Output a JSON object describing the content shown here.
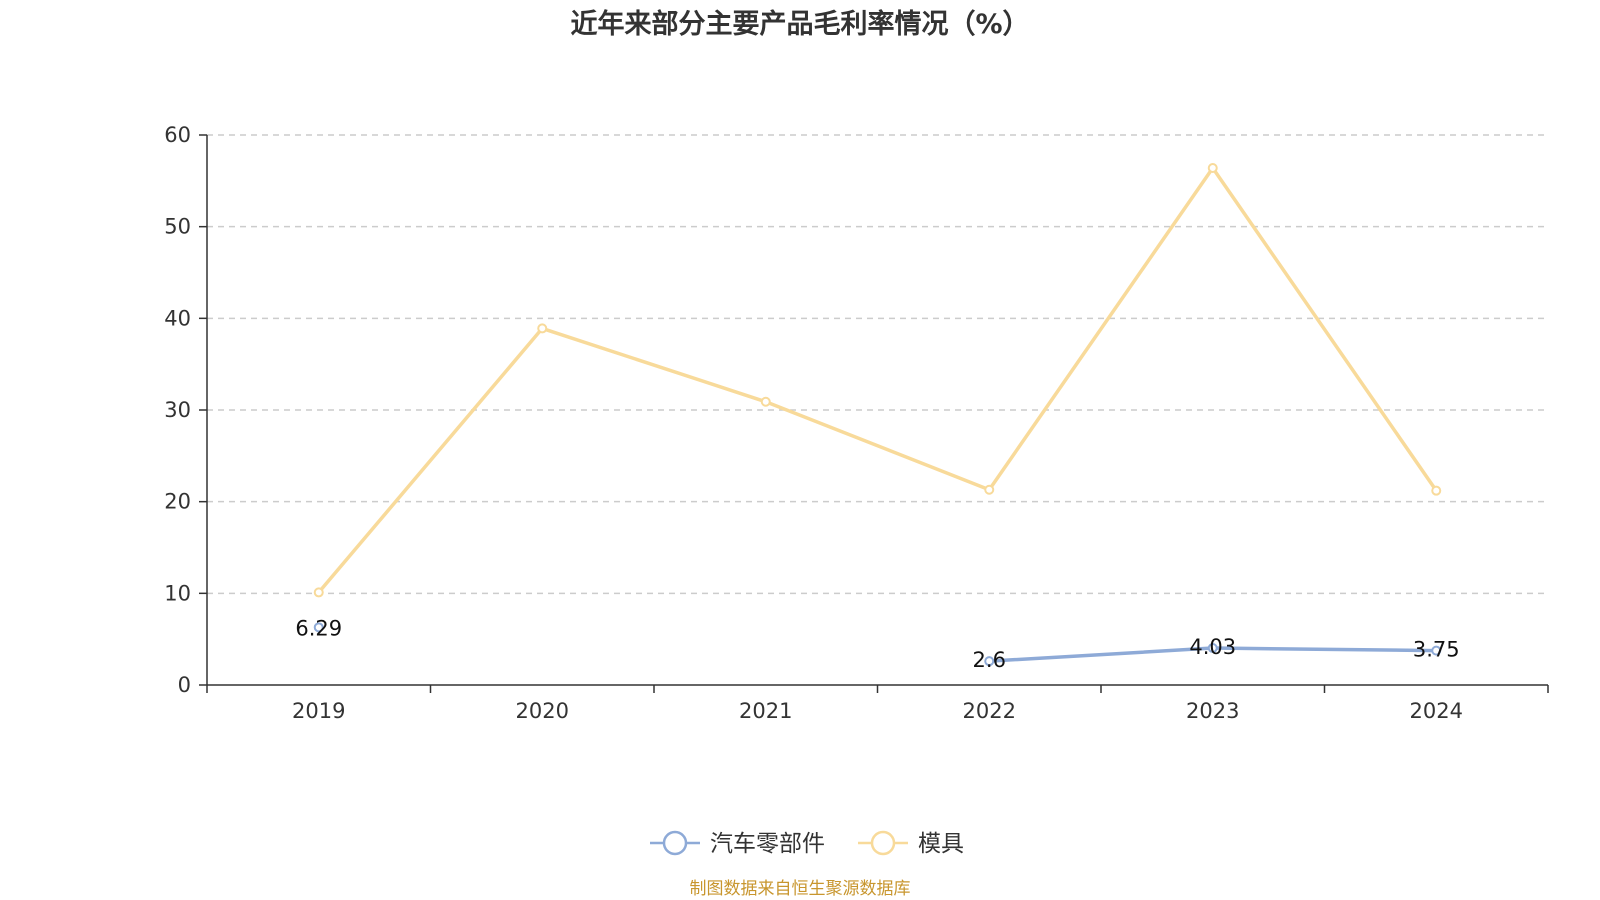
{
  "chart_data": {
    "type": "line",
    "title": "近年来部分主要产品毛利率情况（%）",
    "categories": [
      "2019",
      "2020",
      "2021",
      "2022",
      "2023",
      "2024"
    ],
    "ylim": [
      0,
      60
    ],
    "yticks": [
      0,
      10,
      20,
      30,
      40,
      50,
      60
    ],
    "grid": true,
    "legend_position": "bottom",
    "series": [
      {
        "name": "汽车零部件",
        "color": "#8eaad7",
        "values": [
          6.29,
          null,
          null,
          2.6,
          4.03,
          3.75
        ],
        "labels": [
          "6.29",
          "",
          "",
          "2.6",
          "4.03",
          "3.75"
        ]
      },
      {
        "name": "模具",
        "color": "#f8da9a",
        "values": [
          10.1,
          38.9,
          30.9,
          21.3,
          56.4,
          21.2
        ],
        "labels": [
          "",
          "",
          "",
          "",
          "",
          ""
        ]
      }
    ]
  },
  "footer": {
    "source": "制图数据来自恒生聚源数据库"
  }
}
